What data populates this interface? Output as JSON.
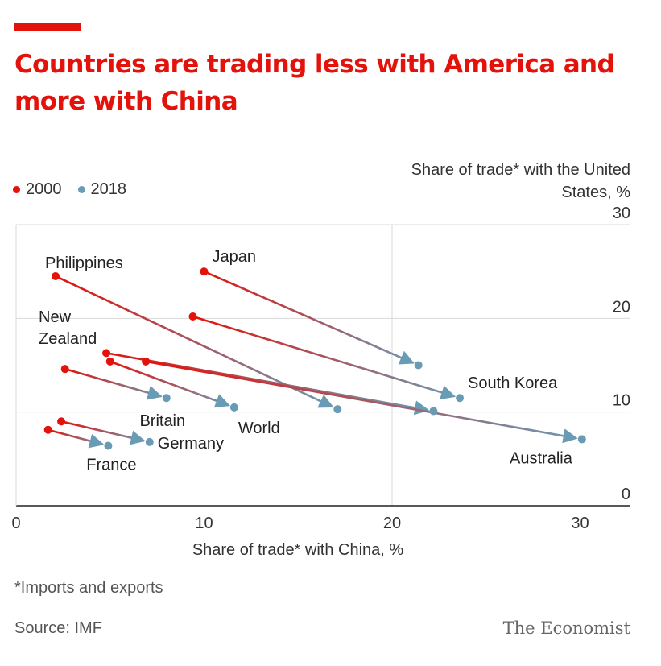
{
  "header": {
    "title": "Countries are trading less with America and more with China"
  },
  "legend": {
    "items": [
      {
        "label": "2000",
        "color": "#e3120b"
      },
      {
        "label": "2018",
        "color": "#6a9bb5"
      }
    ]
  },
  "footer": {
    "footnote": "*Imports and exports",
    "source": "Source: IMF",
    "brand": "The Economist"
  },
  "chart_data": {
    "type": "scatter",
    "title": "Countries are trading less with America and more with China",
    "xlabel": "Share of trade* with China, %",
    "ylabel": "Share of trade* with the United States, %",
    "xlim": [
      0,
      33
    ],
    "ylim": [
      0,
      30
    ],
    "xticks": [
      "0",
      "10",
      "20",
      "30"
    ],
    "yticks": [
      "0",
      "10",
      "20",
      "30"
    ],
    "grid": true,
    "legend_position": "top-left",
    "colors": {
      "2000": "#e3120b",
      "2018": "#6a9bb5"
    },
    "series": [
      {
        "name": "2000",
        "color": "#e3120b"
      },
      {
        "name": "2018",
        "color": "#6a9bb5"
      }
    ],
    "points": [
      {
        "label": "Japan",
        "x2000": 10.0,
        "y2000": 25.0,
        "x2018": 21.4,
        "y2018": 15.0
      },
      {
        "label": "Philippines",
        "x2000": 2.1,
        "y2000": 24.5,
        "x2018": 17.1,
        "y2018": 10.3
      },
      {
        "label": "South Korea",
        "x2000": 9.4,
        "y2000": 20.2,
        "x2018": 23.6,
        "y2018": 11.5
      },
      {
        "label": "",
        "x2000": 4.8,
        "y2000": 16.3,
        "x2018": 22.2,
        "y2018": 10.1
      },
      {
        "label": "Australia",
        "x2000": 6.9,
        "y2000": 15.4,
        "x2018": 30.1,
        "y2018": 7.1
      },
      {
        "label": "World",
        "x2000": 5.0,
        "y2000": 15.4,
        "x2018": 11.6,
        "y2018": 10.5
      },
      {
        "label": "Britain",
        "x2000": 2.6,
        "y2000": 14.6,
        "x2018": 8.0,
        "y2018": 11.5
      },
      {
        "label": "Germany",
        "x2000": 2.4,
        "y2000": 9.0,
        "x2018": 7.1,
        "y2018": 6.8
      },
      {
        "label": "France",
        "x2000": 1.7,
        "y2000": 8.1,
        "x2018": 4.9,
        "y2018": 6.4
      }
    ],
    "labels": [
      {
        "text": "Japan",
        "anchor": "2000",
        "position": "above-right"
      },
      {
        "text": "Philippines",
        "anchor": "2000",
        "position": "above"
      },
      {
        "text": "New",
        "anchor": "none",
        "position": "left"
      },
      {
        "text": "Zealand",
        "anchor": "none",
        "position": "left"
      },
      {
        "text": "South Korea",
        "anchor": "2018",
        "position": "above-right"
      },
      {
        "text": "Australia",
        "anchor": "2018",
        "position": "below-left"
      },
      {
        "text": "World",
        "anchor": "2018",
        "position": "below"
      },
      {
        "text": "Britain",
        "anchor": "2018",
        "position": "below"
      },
      {
        "text": "Germany",
        "anchor": "2018",
        "position": "right"
      },
      {
        "text": "France",
        "anchor": "2018",
        "position": "below"
      }
    ]
  }
}
